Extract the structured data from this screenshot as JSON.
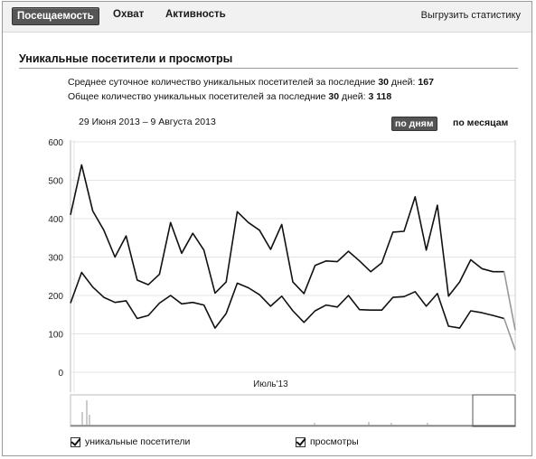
{
  "tabs": [
    {
      "label": "Посещаемость",
      "active": true
    },
    {
      "label": "Охват",
      "active": false
    },
    {
      "label": "Активность",
      "active": false
    }
  ],
  "export_label": "Выгрузить статистику",
  "section_title": "Уникальные посетители и просмотры",
  "stats": {
    "avg_prefix": "Среднее суточное количество уникальных посетителей за последние ",
    "avg_days": "30",
    "avg_mid": " дней: ",
    "avg_value": "167",
    "total_prefix": "Общее количество уникальных посетителей за последние ",
    "total_days": "30",
    "total_mid": " дней: ",
    "total_value": "3 118"
  },
  "date_range": "29 Июня 2013 – 9 Августа 2013",
  "mode_buttons": {
    "by_day": "по дням",
    "by_month": "по месяцам"
  },
  "legend": {
    "unique": "уникальные посетители",
    "views": "просмотры"
  },
  "colors": {
    "line": "#111111",
    "faded_line": "#999999",
    "grid": "#e4e4e4",
    "marker": "#cccccc"
  },
  "chart_data": {
    "type": "line",
    "ylim": [
      0,
      600
    ],
    "yticks": [
      0,
      100,
      200,
      300,
      400,
      500,
      600
    ],
    "x_label_text": "Июль'13",
    "x_label_index": 18,
    "marker_index": 40,
    "fade_from_index": 51,
    "series": [
      {
        "values": [
          410,
          540,
          420,
          370,
          300,
          355,
          240,
          228,
          255,
          390,
          310,
          362,
          318,
          206,
          235,
          418,
          390,
          370,
          320,
          385,
          235,
          205,
          278,
          290,
          288,
          315,
          290,
          262,
          285,
          365,
          367,
          457,
          318,
          435,
          198,
          235,
          293,
          270,
          262,
          262,
          110
        ]
      },
      {
        "values": [
          180,
          260,
          222,
          195,
          182,
          186,
          140,
          148,
          180,
          200,
          178,
          182,
          175,
          115,
          153,
          232,
          220,
          202,
          172,
          198,
          160,
          130,
          160,
          175,
          170,
          200,
          163,
          162,
          162,
          195,
          197,
          210,
          172,
          205,
          120,
          115,
          160,
          155,
          148,
          140,
          58
        ]
      }
    ],
    "grid": true
  }
}
